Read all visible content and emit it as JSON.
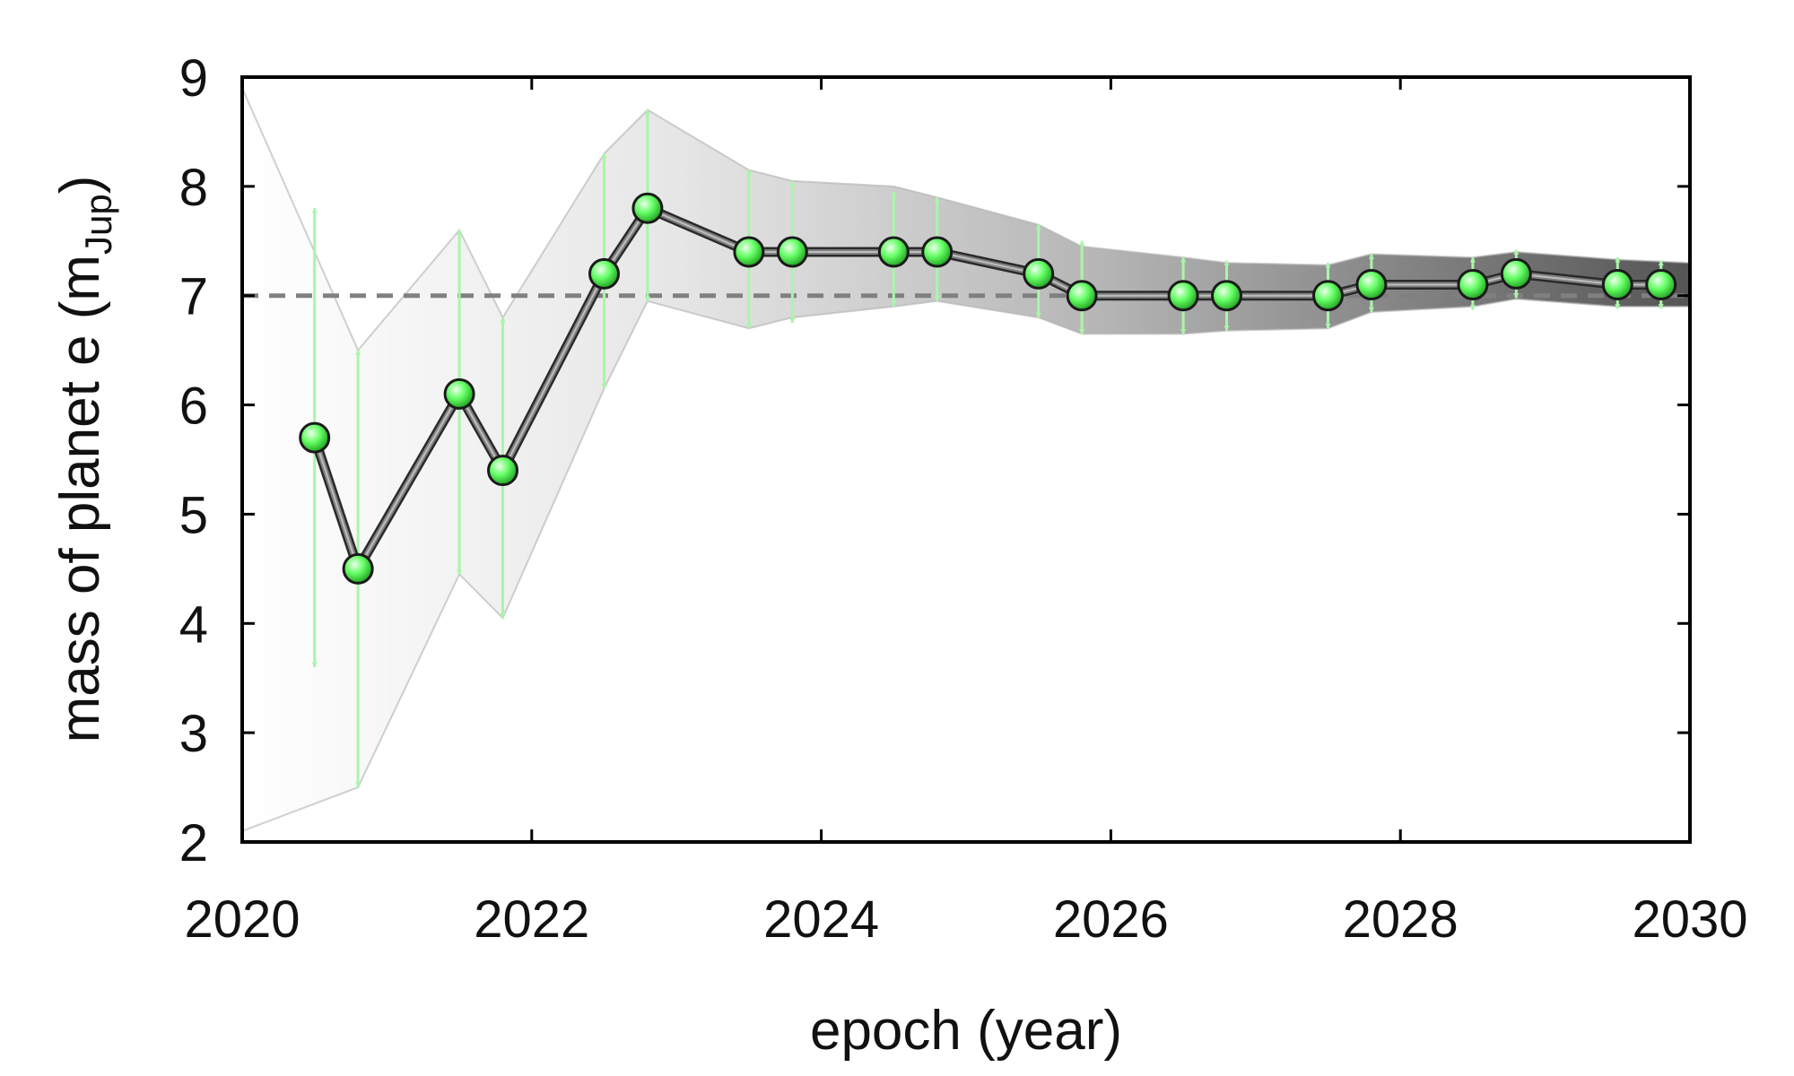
{
  "chart_data": {
    "type": "line",
    "title": "",
    "xlabel": "epoch (year)",
    "ylabel": {
      "main": "mass of planet e (m",
      "sub": "Jup",
      "close": ")"
    },
    "xlim": [
      2020,
      2030
    ],
    "ylim": [
      2,
      9
    ],
    "xticks": [
      2020,
      2022,
      2024,
      2026,
      2028,
      2030
    ],
    "yticks": [
      2,
      3,
      4,
      5,
      6,
      7,
      8,
      9
    ],
    "grid": false,
    "legend": "none",
    "reference_line": {
      "y": 7,
      "style": "dashed",
      "color": "#808080"
    },
    "band": {
      "x": [
        2020.0,
        2020.8,
        2021.5,
        2021.8,
        2022.5,
        2022.8,
        2023.5,
        2023.8,
        2024.5,
        2024.8,
        2025.5,
        2025.8,
        2026.5,
        2026.8,
        2027.5,
        2027.8,
        2028.5,
        2028.8,
        2029.5,
        2030.0
      ],
      "upper": [
        8.9,
        6.5,
        7.6,
        6.8,
        8.3,
        8.7,
        8.15,
        8.05,
        8.0,
        7.9,
        7.65,
        7.45,
        7.35,
        7.3,
        7.28,
        7.38,
        7.35,
        7.4,
        7.33,
        7.3
      ],
      "lower": [
        2.1,
        2.5,
        4.45,
        4.05,
        6.15,
        6.95,
        6.7,
        6.8,
        6.9,
        6.95,
        6.8,
        6.65,
        6.65,
        6.68,
        6.7,
        6.85,
        6.9,
        6.97,
        6.9,
        6.9
      ]
    },
    "series": [
      {
        "x": [
          2020.5,
          2020.8,
          2021.5,
          2021.8,
          2022.5,
          2022.8,
          2023.5,
          2023.8,
          2024.5,
          2024.8,
          2025.5,
          2025.8,
          2026.5,
          2026.8,
          2027.5,
          2027.8,
          2028.5,
          2028.8,
          2029.5,
          2029.8
        ],
        "y": [
          5.7,
          4.5,
          6.1,
          5.4,
          7.2,
          7.8,
          7.4,
          7.4,
          7.4,
          7.4,
          7.2,
          7.0,
          7.0,
          7.0,
          7.0,
          7.1,
          7.1,
          7.2,
          7.1,
          7.1
        ],
        "yerr_upper": [
          7.8,
          6.5,
          7.6,
          6.8,
          8.3,
          8.7,
          8.15,
          8.05,
          7.95,
          7.9,
          7.65,
          7.5,
          7.35,
          7.32,
          7.3,
          7.38,
          7.35,
          7.42,
          7.35,
          7.32
        ],
        "yerr_lower": [
          3.6,
          2.5,
          4.45,
          4.05,
          6.15,
          6.95,
          6.7,
          6.75,
          6.9,
          6.95,
          6.8,
          6.65,
          6.65,
          6.68,
          6.7,
          6.85,
          6.87,
          6.98,
          6.88,
          6.88
        ]
      }
    ],
    "colors": {
      "marker_fill": "#66ff66",
      "errorbar": "#aaf5aa",
      "line": "#808080",
      "axis": "#000000"
    }
  }
}
